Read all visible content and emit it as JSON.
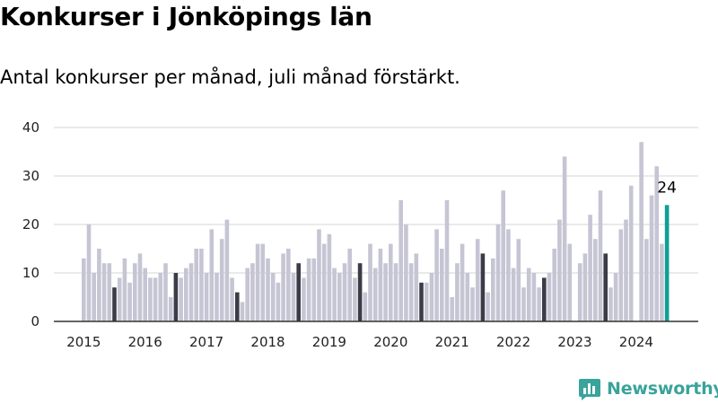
{
  "title": "Konkurser i Jönköpings län",
  "subtitle": "Antal konkurser per månad, juli månad förstärkt.",
  "brand": {
    "name": "Newsworthy",
    "icon": "bar-chart-logo-icon",
    "color": "#3aa39b"
  },
  "colors": {
    "default_bar": "#c6c5d4",
    "july_bar": "#3b3c47",
    "latest_bar": "#109e96",
    "grid": "#d4d4d4"
  },
  "chart_data": {
    "type": "bar",
    "title": "Konkurser i Jönköpings län",
    "subtitle": "Antal konkurser per månad, juli månad förstärkt.",
    "xlabel": "",
    "ylabel": "",
    "ylim": [
      0,
      40
    ],
    "yticks": [
      0,
      10,
      20,
      30,
      40
    ],
    "x_tick_labels": [
      "2015",
      "2016",
      "2017",
      "2018",
      "2019",
      "2020",
      "2021",
      "2022",
      "2023",
      "2024"
    ],
    "grid": true,
    "highlight": "juli",
    "start": "2015-01",
    "end": "2024-07",
    "values": [
      13,
      20,
      10,
      15,
      12,
      12,
      7,
      9,
      13,
      8,
      12,
      14,
      11,
      9,
      9,
      10,
      12,
      5,
      10,
      9,
      11,
      12,
      15,
      15,
      10,
      19,
      10,
      17,
      21,
      9,
      6,
      4,
      11,
      12,
      16,
      16,
      13,
      10,
      8,
      14,
      15,
      10,
      12,
      9,
      13,
      13,
      19,
      16,
      18,
      11,
      10,
      12,
      15,
      9,
      12,
      6,
      16,
      11,
      15,
      12,
      16,
      12,
      25,
      20,
      12,
      14,
      8,
      8,
      10,
      19,
      15,
      25,
      5,
      12,
      16,
      10,
      7,
      17,
      14,
      6,
      13,
      20,
      27,
      19,
      11,
      17,
      7,
      11,
      10,
      7,
      9,
      10,
      15,
      21,
      34,
      16,
      0,
      12,
      14,
      22,
      17,
      27,
      14,
      7,
      10,
      19,
      21,
      28,
      0,
      37,
      17,
      26,
      32,
      16,
      24
    ],
    "annotations": [
      {
        "period": "2024-07",
        "text": "24"
      }
    ]
  }
}
